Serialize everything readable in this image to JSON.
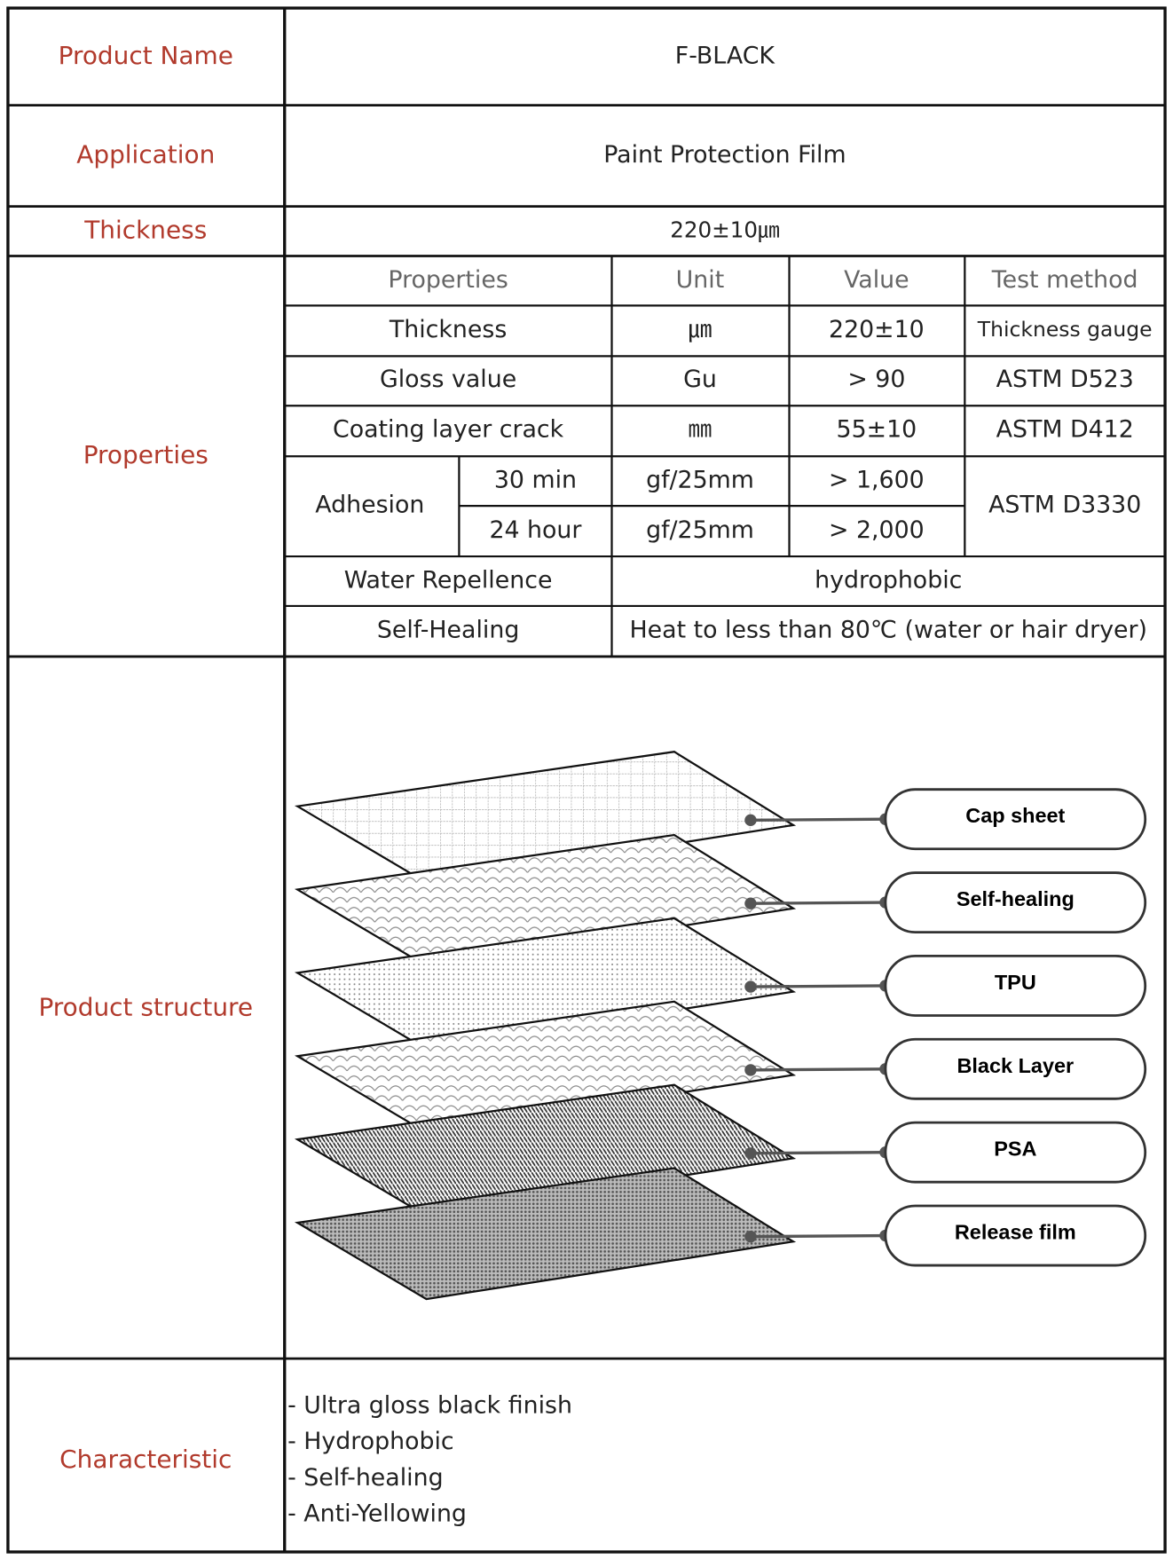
{
  "product_name": {
    "label": "Product Name",
    "value": "F-BLACK"
  },
  "application": {
    "label": "Application",
    "value": "Paint Protection Film"
  },
  "thickness": {
    "label": "Thickness",
    "value": "220±10㎛"
  },
  "properties": {
    "label": "Properties",
    "header": [
      "Properties",
      "Unit",
      "Value",
      "Test method"
    ],
    "rows": [
      [
        "Thickness",
        "㎛",
        "220±10",
        "Thickness gauge"
      ],
      [
        "Gloss value",
        "Gu",
        "> 90",
        "ASTM D523"
      ],
      [
        "Coating layer crack",
        "㎜",
        "55±10",
        "ASTM D412"
      ]
    ],
    "adhesion": {
      "label": "Adhesion",
      "test_method": "ASTM D3330",
      "rows": [
        [
          "30 min",
          "gf/25mm",
          "> 1,600"
        ],
        [
          "24 hour",
          "gf/25mm",
          "> 2,000"
        ]
      ]
    },
    "water_repellence": [
      "Water Repellence",
      "hydrophobic"
    ],
    "self_healing": [
      "Self-Healing",
      "Heat to less than 80℃ (water or hair dryer)"
    ]
  },
  "product_structure": {
    "label": "Product structure",
    "layers": [
      "Cap sheet",
      "Self-healing",
      "TPU",
      "Black Layer",
      "PSA",
      "Release film"
    ]
  },
  "characteristic": {
    "label": "Characteristic",
    "items": [
      "- Ultra gloss black finish",
      "- Hydrophobic",
      "- Self-healing",
      "- Anti-Yellowing"
    ]
  }
}
